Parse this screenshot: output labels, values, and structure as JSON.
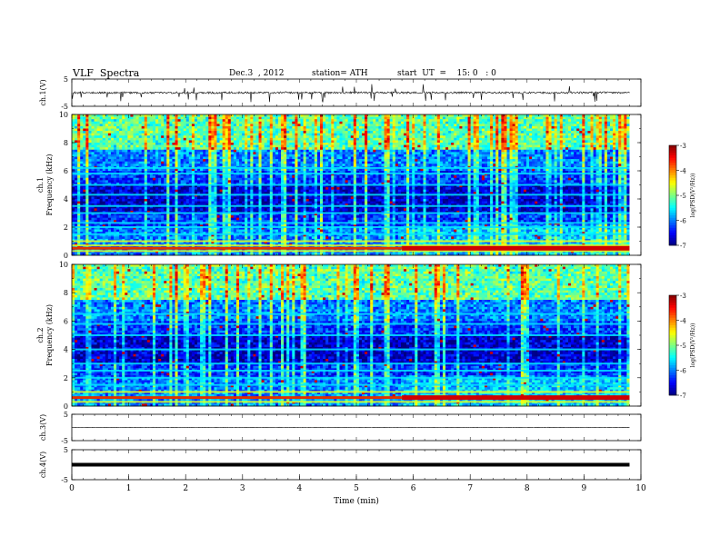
{
  "header": {
    "title": "VLF  Spectra",
    "date": "Dec.3  , 2012",
    "station": "station= ATH",
    "start": "start  UT  =    15: 0   : 0"
  },
  "chart_data": [
    {
      "type": "line",
      "ylabel": "ch.1(V)",
      "ylim": [
        -5,
        5
      ],
      "yticks": [
        "5",
        "-5"
      ],
      "baseline": 0,
      "noise": "moderate with frequent downward spikes"
    },
    {
      "type": "heatmap",
      "ylabel": "ch.1\nFrequency  (kHz)",
      "ylim": [
        0,
        10
      ],
      "yticks": [
        "0",
        "2",
        "4",
        "6",
        "8",
        "10"
      ],
      "colorbar": {
        "label": "log(PSD(V²/Hz))",
        "ticks": [
          "-3",
          "-4",
          "-5",
          "-6",
          "-7"
        ],
        "range": [
          -7,
          -3
        ]
      },
      "bands_khz": [
        0.3,
        0.5,
        0.7,
        1.0,
        1.5,
        2.0,
        2.3,
        3.0,
        3.5,
        4.3,
        5.0,
        5.8,
        6.2
      ],
      "red_band_khz": 0.5,
      "step_change_time_min": 5.8
    },
    {
      "type": "heatmap",
      "ylabel": "ch.2\nFrequency  (kHz)",
      "ylim": [
        0,
        10
      ],
      "yticks": [
        "0",
        "2",
        "4",
        "6",
        "8",
        "10"
      ],
      "colorbar": {
        "label": "log(PSD(V²/Hz))",
        "ticks": [
          "-3",
          "-4",
          "-5",
          "-6",
          "-7"
        ],
        "range": [
          -7,
          -3
        ]
      },
      "bands_khz": [
        0.3,
        0.6,
        1.0,
        1.5,
        2.0,
        2.5,
        3.0,
        4.0,
        5.0,
        5.8,
        6.5
      ],
      "red_band_khz": 0.6,
      "step_change_time_min": 5.8
    },
    {
      "type": "line",
      "ylabel": "ch.3(V)",
      "ylim": [
        -5,
        5
      ],
      "yticks": [
        "5",
        "-5"
      ],
      "baseline": 0,
      "noise": "low"
    },
    {
      "type": "line",
      "ylabel": "ch.4(V)",
      "ylim": [
        -5,
        5
      ],
      "yticks": [
        "5",
        "-5"
      ],
      "baseline": 0,
      "noise": "thick band"
    }
  ],
  "xaxis": {
    "label": "Time  (min)",
    "xlim": [
      0,
      10
    ],
    "ticks": [
      "0",
      "1",
      "2",
      "3",
      "4",
      "5",
      "6",
      "7",
      "8",
      "9",
      "10"
    ],
    "data_end_min": 9.8
  },
  "colors": {
    "frame": "#000000",
    "spectrum_low": "#00007f",
    "spectrum_high": "#ff0000"
  }
}
